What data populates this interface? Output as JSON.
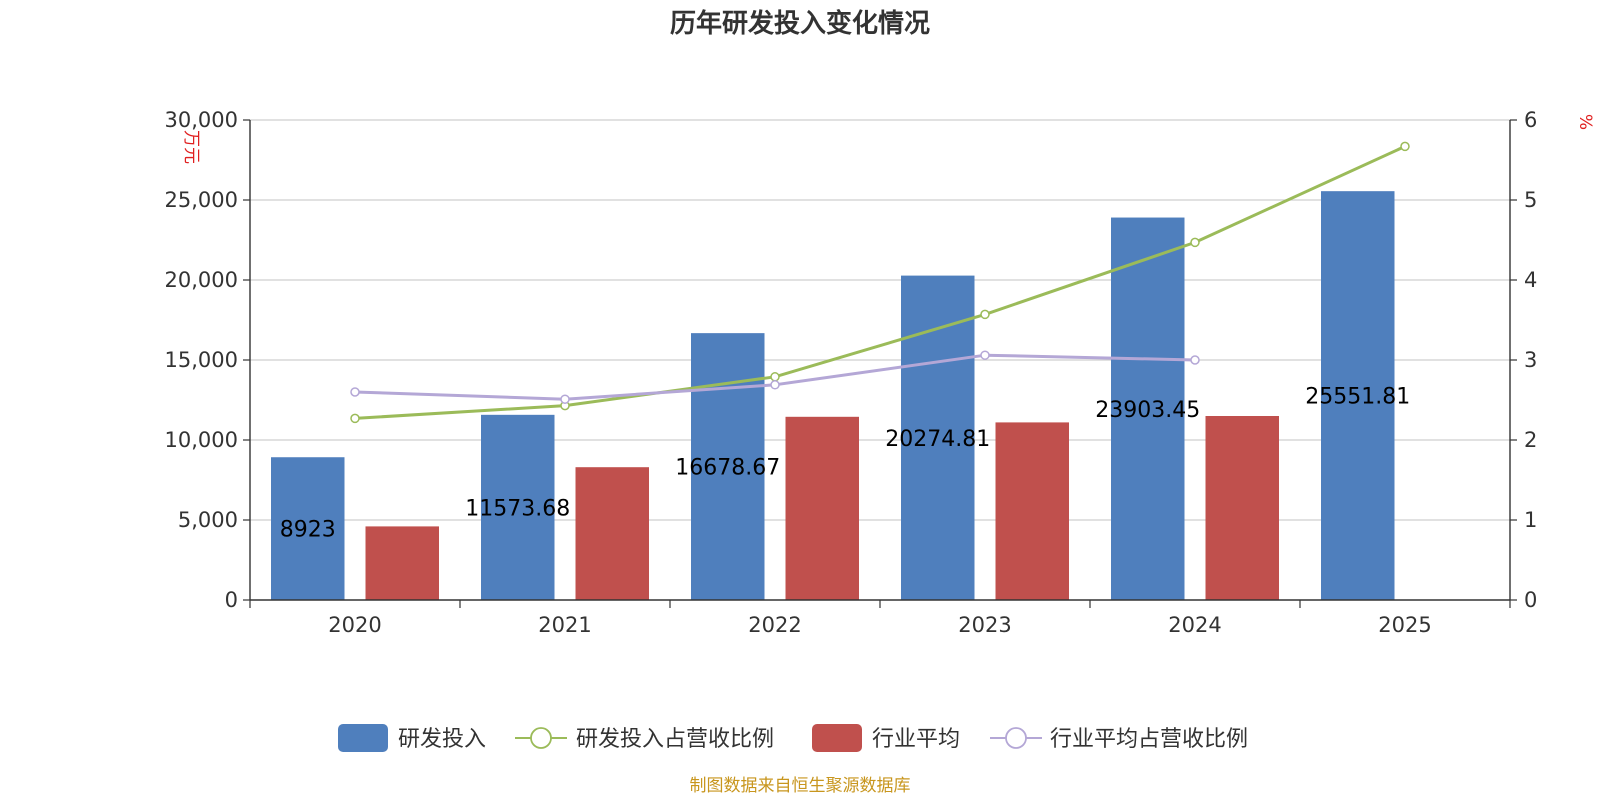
{
  "chart_data": {
    "type": "bar",
    "title": "历年研发投入变化情况",
    "categories": [
      "2020",
      "2021",
      "2022",
      "2023",
      "2024",
      "2025"
    ],
    "y_left": {
      "unit_label": "万元",
      "ylim": [
        0,
        30000
      ],
      "ticks": [
        0,
        5000,
        10000,
        15000,
        20000,
        25000,
        30000
      ],
      "tick_labels": [
        "0",
        "5,000",
        "10,000",
        "15,000",
        "20,000",
        "25,000",
        "30,000"
      ]
    },
    "y_right": {
      "unit_label": "%",
      "ylim": [
        0,
        6
      ],
      "ticks": [
        0,
        1,
        2,
        3,
        4,
        5,
        6
      ],
      "tick_labels": [
        "0",
        "1",
        "2",
        "3",
        "4",
        "5",
        "6"
      ]
    },
    "series": [
      {
        "name": "研发投入",
        "type": "bar",
        "axis": "left",
        "color": "#4f7fbd",
        "values": [
          8923,
          11573.68,
          16678.67,
          20274.81,
          23903.45,
          25551.81
        ],
        "labels": [
          "8923",
          "11573.68",
          "16678.67",
          "20274.81",
          "23903.45",
          "25551.81"
        ]
      },
      {
        "name": "研发投入占营收比例",
        "type": "line",
        "axis": "right",
        "color": "#9bbb59",
        "values": [
          2.27,
          2.43,
          2.79,
          3.57,
          4.47,
          5.67
        ]
      },
      {
        "name": "行业平均",
        "type": "bar",
        "axis": "left",
        "color": "#c0504d",
        "values": [
          4600,
          8300,
          11450,
          11100,
          11500,
          null
        ]
      },
      {
        "name": "行业平均占营收比例",
        "type": "line",
        "axis": "right",
        "color": "#b4a7d6",
        "values": [
          2.6,
          2.51,
          2.69,
          3.06,
          3.0,
          null
        ]
      }
    ],
    "grid": true,
    "legend_position": "bottom"
  },
  "source": "制图数据来自恒生聚源数据库"
}
